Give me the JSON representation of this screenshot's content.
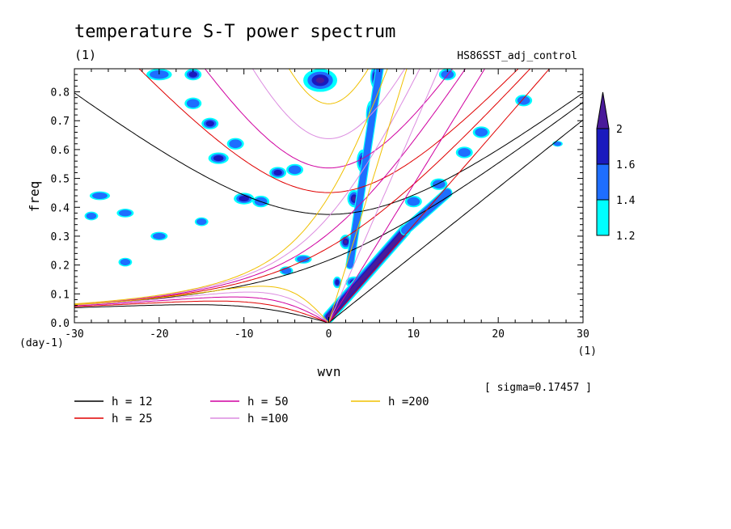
{
  "chart_data": {
    "type": "heatmap",
    "title": "temperature S-T power spectrum",
    "units_label": "(1)",
    "dataset": "HS86SST_adj_control",
    "xlabel": "wvn",
    "ylabel": "freq",
    "x_units": "(1)",
    "y_units": "(day-1)",
    "xlim": [
      -30,
      30
    ],
    "ylim": [
      0.0,
      0.88
    ],
    "x_ticks": [
      -30,
      -20,
      -10,
      0,
      10,
      20,
      30
    ],
    "x_tick_labels": [
      "-30",
      "-20",
      "-10",
      "0",
      "10",
      "20",
      "30"
    ],
    "y_ticks": [
      0.0,
      0.1,
      0.2,
      0.3,
      0.4,
      0.5,
      0.6,
      0.7,
      0.8
    ],
    "y_tick_labels": [
      "0.0",
      "0.1",
      "0.2",
      "0.3",
      "0.4",
      "0.5",
      "0.6",
      "0.7",
      "0.8"
    ],
    "sigma_note": "[ sigma=0.17457 ]",
    "colorbar": {
      "levels": [
        1.2,
        1.4,
        1.6,
        2
      ],
      "labels": [
        "1.2",
        "1.4",
        "1.6",
        "2"
      ],
      "colors": [
        "#00ffff",
        "#1e6eff",
        "#1a1abe",
        "#4a1a9a"
      ]
    },
    "dispersion_curves": [
      {
        "h": 12,
        "label": "h = 12",
        "color": "#000000"
      },
      {
        "h": 25,
        "label": "h = 25",
        "color": "#e00000"
      },
      {
        "h": 50,
        "label": "h = 50",
        "color": "#d000a0"
      },
      {
        "h": 100,
        "label": "h =100",
        "color": "#dc8ce0"
      },
      {
        "h": 200,
        "label": "h =200",
        "color": "#f0c000"
      }
    ],
    "features": {
      "blobs": [
        {
          "x": -1,
          "y": 0.84,
          "level": 3,
          "sx": 2.0,
          "sy": 0.04
        },
        {
          "x": 5.5,
          "y": 0.85,
          "level": 3,
          "sx": 0.6,
          "sy": 0.04
        },
        {
          "x": 5.0,
          "y": 0.72,
          "level": 3,
          "sx": 0.6,
          "sy": 0.05
        },
        {
          "x": 4.0,
          "y": 0.56,
          "level": 3,
          "sx": 0.7,
          "sy": 0.04
        },
        {
          "x": 3.0,
          "y": 0.43,
          "level": 3,
          "sx": 0.8,
          "sy": 0.03
        },
        {
          "x": 2.0,
          "y": 0.28,
          "level": 3,
          "sx": 0.7,
          "sy": 0.025
        },
        {
          "x": 1.0,
          "y": 0.14,
          "level": 2,
          "sx": 0.5,
          "sy": 0.02
        },
        {
          "x": 3.0,
          "y": 0.14,
          "level": 2,
          "sx": 1.0,
          "sy": 0.02
        },
        {
          "x": -3.0,
          "y": 0.22,
          "level": 1,
          "sx": 1.0,
          "sy": 0.015
        },
        {
          "x": -5.0,
          "y": 0.18,
          "level": 1,
          "sx": 0.8,
          "sy": 0.015
        },
        {
          "x": -10.0,
          "y": 0.43,
          "level": 2,
          "sx": 1.2,
          "sy": 0.02
        },
        {
          "x": -8.0,
          "y": 0.42,
          "level": 1,
          "sx": 1.0,
          "sy": 0.02
        },
        {
          "x": -6.0,
          "y": 0.52,
          "level": 2,
          "sx": 1.0,
          "sy": 0.02
        },
        {
          "x": -4.0,
          "y": 0.53,
          "level": 1,
          "sx": 1.0,
          "sy": 0.02
        },
        {
          "x": -13.0,
          "y": 0.57,
          "level": 2,
          "sx": 1.2,
          "sy": 0.02
        },
        {
          "x": -11.0,
          "y": 0.62,
          "level": 1,
          "sx": 1.0,
          "sy": 0.02
        },
        {
          "x": -14.0,
          "y": 0.69,
          "level": 2,
          "sx": 1.0,
          "sy": 0.02
        },
        {
          "x": -16.0,
          "y": 0.76,
          "level": 1,
          "sx": 1.0,
          "sy": 0.02
        },
        {
          "x": -20.0,
          "y": 0.86,
          "level": 1,
          "sx": 1.5,
          "sy": 0.02
        },
        {
          "x": -16.0,
          "y": 0.86,
          "level": 2,
          "sx": 1.0,
          "sy": 0.02
        },
        {
          "x": -27.0,
          "y": 0.44,
          "level": 1,
          "sx": 1.2,
          "sy": 0.015
        },
        {
          "x": -24.0,
          "y": 0.38,
          "level": 1,
          "sx": 1.0,
          "sy": 0.015
        },
        {
          "x": -20.0,
          "y": 0.3,
          "level": 1,
          "sx": 1.0,
          "sy": 0.015
        },
        {
          "x": -28.0,
          "y": 0.37,
          "level": 1,
          "sx": 0.8,
          "sy": 0.015
        },
        {
          "x": -24.0,
          "y": 0.21,
          "level": 1,
          "sx": 0.8,
          "sy": 0.015
        },
        {
          "x": -15.0,
          "y": 0.35,
          "level": 1,
          "sx": 0.8,
          "sy": 0.015
        },
        {
          "x": 10.0,
          "y": 0.42,
          "level": 1,
          "sx": 1.0,
          "sy": 0.02
        },
        {
          "x": 13.0,
          "y": 0.48,
          "level": 1,
          "sx": 1.0,
          "sy": 0.02
        },
        {
          "x": 16.0,
          "y": 0.59,
          "level": 1,
          "sx": 1.0,
          "sy": 0.02
        },
        {
          "x": 18.0,
          "y": 0.66,
          "level": 1,
          "sx": 1.0,
          "sy": 0.02
        },
        {
          "x": 23.0,
          "y": 0.77,
          "level": 1,
          "sx": 1.0,
          "sy": 0.02
        },
        {
          "x": 27.0,
          "y": 0.62,
          "level": 1,
          "sx": 0.6,
          "sy": 0.01
        },
        {
          "x": 14.0,
          "y": 0.86,
          "level": 1,
          "sx": 1.0,
          "sy": 0.02
        }
      ],
      "ridges": [
        {
          "x0": 0.0,
          "y0": 0.02,
          "x1": 9.0,
          "y1": 0.32,
          "level": 3,
          "width": 0.7
        },
        {
          "x0": 9.0,
          "y0": 0.32,
          "x1": 14.0,
          "y1": 0.45,
          "level": 1,
          "width": 0.6
        },
        {
          "x0": 2.5,
          "y0": 0.2,
          "x1": 6.0,
          "y1": 0.88,
          "level": 1,
          "width": 0.5
        }
      ]
    }
  }
}
